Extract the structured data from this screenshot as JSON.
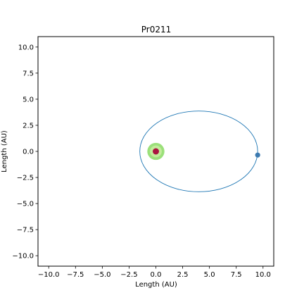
{
  "chart_data": {
    "type": "scatter",
    "title": "Pr0211",
    "xlabel": "Length (AU)",
    "ylabel": "Length (AU)",
    "xlim": [
      -11,
      11
    ],
    "ylim": [
      -11,
      11
    ],
    "xticks": [
      -10,
      -7.5,
      -5,
      -2.5,
      0,
      2.5,
      5,
      7.5,
      10
    ],
    "xtick_labels": [
      "−10.0",
      "−7.5",
      "−5.0",
      "−2.5",
      "0.0",
      "2.5",
      "5.0",
      "7.5",
      "10.0"
    ],
    "yticks": [
      -10,
      -7.5,
      -5,
      -2.5,
      0,
      2.5,
      5,
      7.5,
      10
    ],
    "ytick_labels": [
      "−10.0",
      "−7.5",
      "−5.0",
      "−2.5",
      "0.0",
      "2.5",
      "5.0",
      "7.5",
      "10.0"
    ],
    "grid": false,
    "orbit": {
      "center": [
        4.0,
        0.0
      ],
      "semi_major_axis": 5.5,
      "semi_minor_axis": 3.87,
      "color": "#1f77b4"
    },
    "planet": {
      "x": 9.5,
      "y": -0.35,
      "color": "#3c7ab0"
    },
    "star": {
      "x": 0.0,
      "y": 0.0,
      "color": "#aa1540",
      "zones": [
        {
          "outer_radius": 0.8,
          "color": "#9be07a"
        },
        {
          "outer_radius": 0.55,
          "color": "#c3ec9c"
        }
      ]
    }
  }
}
